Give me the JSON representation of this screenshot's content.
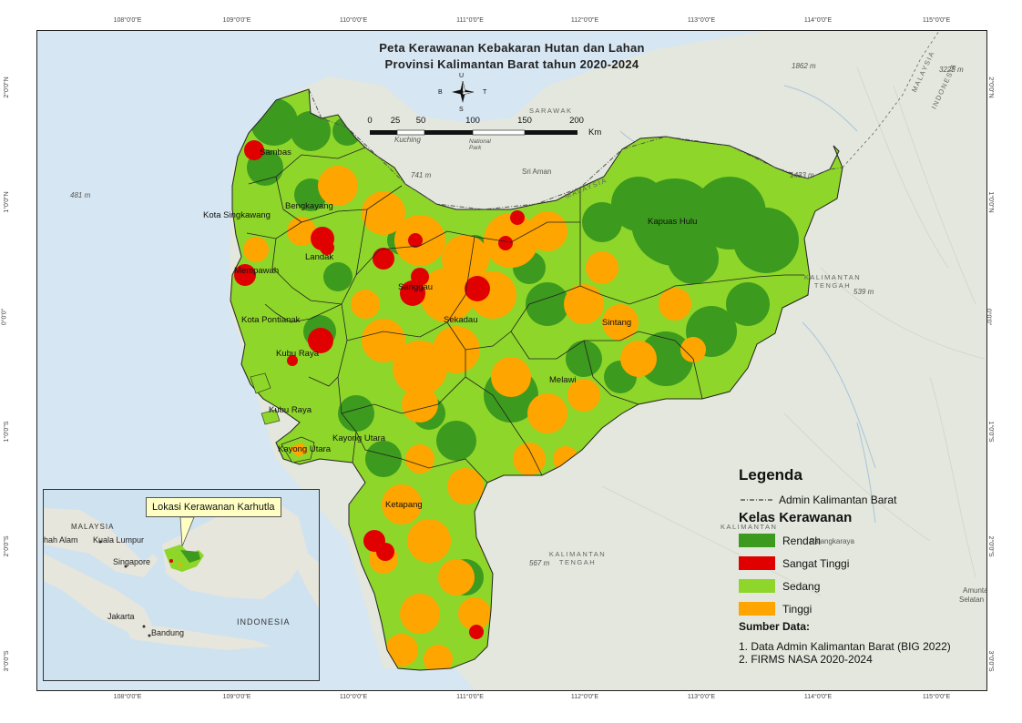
{
  "map_title": {
    "line1": "Peta Kerawanan Kebakaran Hutan dan Lahan",
    "line2": "Provinsi Kalimantan Barat tahun 2020-2024"
  },
  "graticule": {
    "top": [
      "108°0'0\"E",
      "109°0'0\"E",
      "110°0'0\"E",
      "111°0'0\"E",
      "112°0'0\"E",
      "113°0'0\"E",
      "114°0'0\"E",
      "115°0'0\"E"
    ],
    "bottom": [
      "108°0'0\"E",
      "109°0'0\"E",
      "110°0'0\"E",
      "111°0'0\"E",
      "112°0'0\"E",
      "113°0'0\"E",
      "114°0'0\"E",
      "115°0'0\"E"
    ],
    "left": [
      "2°0'0\"N",
      "1°0'0\"N",
      "0°0'0\"",
      "1°0'0\"S",
      "2°0'0\"S",
      "3°0'0\"S"
    ],
    "right": [
      "2°0'0\"N",
      "1°0'0\"N",
      "0°0'0\"",
      "1°0'0\"S",
      "2°0'0\"S",
      "3°0'0\"S"
    ]
  },
  "north_arrow": {
    "n": "U",
    "s": "S",
    "w": "B",
    "e": "T"
  },
  "scale_bar": {
    "labels": [
      "0",
      "25",
      "50",
      "100",
      "150",
      "200"
    ],
    "unit": "Km"
  },
  "regions": [
    {
      "name": "Sambas"
    },
    {
      "name": "Bengkayang"
    },
    {
      "name": "Kota Singkawang"
    },
    {
      "name": "Landak"
    },
    {
      "name": "Mempawah"
    },
    {
      "name": "Sanggau"
    },
    {
      "name": "Kota Pontianak"
    },
    {
      "name": "Kubu Raya"
    },
    {
      "name": "Sekadau"
    },
    {
      "name": "Sintang"
    },
    {
      "name": "Kapuas Hulu"
    },
    {
      "name": "Melawi"
    },
    {
      "name": "Kubu Raya"
    },
    {
      "name": "Kayong Utara"
    },
    {
      "name": "Kayong Utara"
    },
    {
      "name": "Ketapang"
    }
  ],
  "basemap_labels": {
    "malaysia_ne": "MALAYSIA",
    "indonesia_ne": "INDONESIA",
    "sarawak": "SARAWAK",
    "kuching": "Kuching",
    "national_park": "National Park",
    "sri_aman": "Sri Aman",
    "malaysia_border": "MALAYSIA",
    "kalteng_1": "KALIMANTAN TENGAH",
    "kalteng_2": "KALIMANTAN TENGAH",
    "kalteng_3": "KALIMANTAN",
    "palangkaraya": "Palangkaraya",
    "elev_481": "481 m",
    "elev_741": "741 m",
    "elev_1433": "1433 m",
    "elev_539": "539 m",
    "elev_567": "567 m",
    "elev_1862": "1862 m",
    "elev_3228": "3228 m",
    "amuntai": "Amunta",
    "selatan": "Selatan"
  },
  "legend": {
    "title": "Legenda",
    "admin_label": "Admin Kalimantan Barat",
    "class_title": "Kelas Kerawanan",
    "classes": [
      {
        "label": "Rendah",
        "color": "#3c9a1e"
      },
      {
        "label": "Sangat Tinggi",
        "color": "#e00000"
      },
      {
        "label": "Sedang",
        "color": "#8ed62a"
      },
      {
        "label": "Tinggi",
        "color": "#ffa500"
      }
    ],
    "source_title": "Sumber Data:",
    "sources": [
      "1. Data Admin Kalimantan Barat (BIG 2022)",
      "2. FIRMS NASA 2020-2024"
    ]
  },
  "inset": {
    "callout": "Lokasi Kerawanan Karhutla",
    "labels": {
      "malaysia": "MALAYSIA",
      "shah_alam": "hah Alam",
      "kuala_lumpur": "Kuala Lumpur",
      "singapore": "Singapore",
      "jakarta": "Jakarta",
      "bandung": "Bandung",
      "indonesia": "INDONESIA"
    }
  },
  "colors": {
    "sea": "#d6e6f2",
    "land": "#e6e8e0",
    "rendah": "#3c9a1e",
    "sedang": "#8ed62a",
    "tinggi": "#ffa500",
    "sangat_tinggi": "#e00000"
  }
}
